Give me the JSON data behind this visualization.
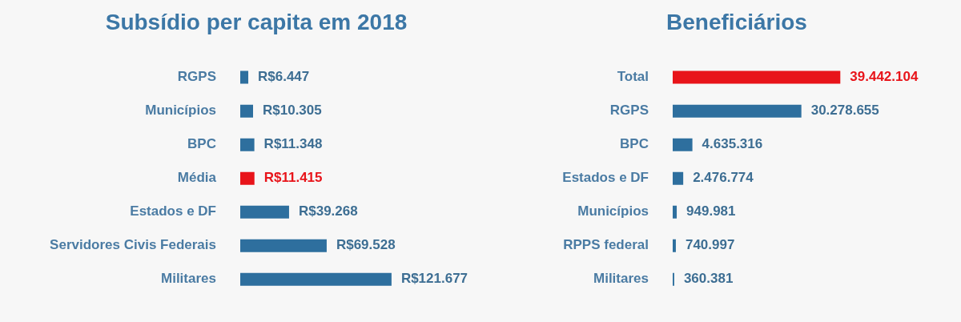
{
  "chart_data": [
    {
      "type": "bar",
      "orientation": "horizontal",
      "title": "Subsídio per capita em 2018",
      "categories": [
        "RGPS",
        "Municípios",
        "BPC",
        "Média",
        "Estados e DF",
        "Servidores Civis Federais",
        "Militares"
      ],
      "values": [
        6447,
        10305,
        11348,
        11415,
        39268,
        69528,
        121677
      ],
      "colors": [
        "#2e6f9e",
        "#2e6f9e",
        "#2e6f9e",
        "#e8141a",
        "#2e6f9e",
        "#2e6f9e",
        "#2e6f9e"
      ],
      "value_labels": [
        "R$6.447",
        "R$10.305",
        "R$11.348",
        "R$11.415",
        "R$39.268",
        "R$69.528",
        "R$121.677"
      ]
    },
    {
      "type": "bar",
      "orientation": "horizontal",
      "title": "Beneficiários",
      "categories": [
        "Total",
        "RGPS",
        "BPC",
        "Estados e DF",
        "Municípios",
        "RPPS federal",
        "Militares"
      ],
      "values": [
        39442104,
        30278655,
        4635316,
        2476774,
        949981,
        740997,
        360381
      ],
      "colors": [
        "#e8141a",
        "#2e6f9e",
        "#2e6f9e",
        "#2e6f9e",
        "#2e6f9e",
        "#2e6f9e",
        "#2e6f9e"
      ],
      "value_labels": [
        "39.442.104",
        "30.278.655",
        "4.635.316",
        "2.476.774",
        "949.981",
        "740.997",
        "360.381"
      ]
    }
  ]
}
